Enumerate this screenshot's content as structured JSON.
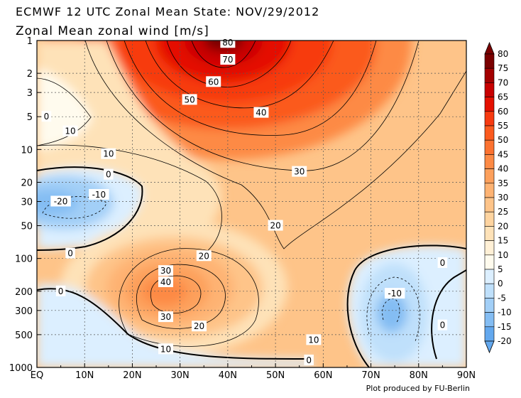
{
  "chart_data": {
    "type": "heatmap",
    "title": "ECMWF 12 UTC Zonal Mean State: NOV/29/2012",
    "subtitle": "Zonal Mean zonal wind [m/s]",
    "credit": "Plot produced by FU-Berlin",
    "x_ticks": [
      "EQ",
      "10N",
      "20N",
      "30N",
      "40N",
      "50N",
      "60N",
      "70N",
      "80N",
      "90N"
    ],
    "x_values": [
      0,
      10,
      20,
      30,
      40,
      50,
      60,
      70,
      80,
      90
    ],
    "y_ticks": [
      "1",
      "2",
      "3",
      "5",
      "10",
      "20",
      "30",
      "50",
      "100",
      "200",
      "300",
      "500",
      "1000"
    ],
    "y_values": [
      1,
      2,
      3,
      5,
      10,
      20,
      30,
      50,
      100,
      200,
      300,
      500,
      1000
    ],
    "y_scale": "log",
    "y_inverted": true,
    "xlim": [
      0,
      90
    ],
    "ylim": [
      1000,
      1
    ],
    "colorbar": {
      "levels": [
        "80",
        "75",
        "70",
        "65",
        "60",
        "55",
        "50",
        "45",
        "40",
        "35",
        "30",
        "25",
        "20",
        "15",
        "10",
        "5",
        "0",
        "-5",
        "-10",
        "-15",
        "-20"
      ],
      "colors": [
        "#7a0000",
        "#a30000",
        "#c80000",
        "#e41000",
        "#f73a10",
        "#fb5a1e",
        "#fc7230",
        "#fd8a45",
        "#fda05c",
        "#feb373",
        "#fec489",
        "#fed4a0",
        "#fee2b8",
        "#fff0d6",
        "#fffbee",
        "#dcefff",
        "#bfe0fb",
        "#a2cff7",
        "#84bdf3",
        "#63a8ee"
      ]
    },
    "contour_labels": [
      {
        "text": "80",
        "lat": 40,
        "p": 1.05
      },
      {
        "text": "70",
        "lat": 40,
        "p": 1.5
      },
      {
        "text": "60",
        "lat": 37,
        "p": 2.4
      },
      {
        "text": "50",
        "lat": 32,
        "p": 3.5
      },
      {
        "text": "40",
        "lat": 47,
        "p": 4.6
      },
      {
        "text": "30",
        "lat": 55,
        "p": 16
      },
      {
        "text": "20",
        "lat": 50,
        "p": 50
      },
      {
        "text": "20",
        "lat": 35,
        "p": 95
      },
      {
        "text": "10",
        "lat": 15,
        "p": 11
      },
      {
        "text": "10",
        "lat": 7,
        "p": 6.8
      },
      {
        "text": "0",
        "lat": 15,
        "p": 17
      },
      {
        "text": "0",
        "lat": 2,
        "p": 5
      },
      {
        "text": "-10",
        "lat": 13,
        "p": 26
      },
      {
        "text": "-20",
        "lat": 5,
        "p": 30
      },
      {
        "text": "0",
        "lat": 7,
        "p": 90
      },
      {
        "text": "0",
        "lat": 5,
        "p": 200
      },
      {
        "text": "30",
        "lat": 27,
        "p": 130
      },
      {
        "text": "40",
        "lat": 27,
        "p": 165
      },
      {
        "text": "30",
        "lat": 27,
        "p": 345
      },
      {
        "text": "20",
        "lat": 34,
        "p": 420
      },
      {
        "text": "10",
        "lat": 27,
        "p": 680
      },
      {
        "text": "10",
        "lat": 58,
        "p": 560
      },
      {
        "text": "0",
        "lat": 57,
        "p": 860
      },
      {
        "text": "0",
        "lat": 85,
        "p": 110
      },
      {
        "text": "-10",
        "lat": 75,
        "p": 210
      },
      {
        "text": "0",
        "lat": 85,
        "p": 410
      }
    ]
  }
}
